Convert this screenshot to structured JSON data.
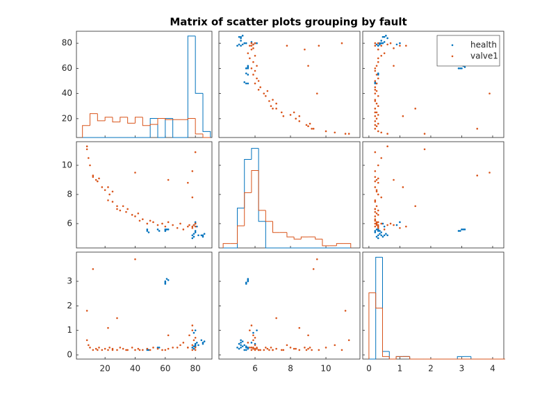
{
  "chart_data": {
    "type": "scatter_matrix",
    "title": "Matrix of scatter plots grouping by fault",
    "legend_position": "upper-right",
    "variables": [
      {
        "xlim": [
          1,
          91
        ],
        "xticks": [
          20,
          40,
          60,
          80
        ],
        "ylim": [
          5,
          89.5
        ],
        "yticks": [
          20,
          40,
          60,
          80
        ],
        "hist_ylim": [
          0,
          89
        ],
        "bins": [
          5,
          10,
          15,
          20,
          25,
          30,
          35,
          40,
          45,
          50,
          55,
          60,
          65,
          70,
          75,
          80,
          85,
          90
        ]
      },
      {
        "xlim": [
          3.96,
          11.92
        ],
        "xticks": [
          6,
          8,
          10
        ],
        "ylim": [
          4.33,
          11.62
        ],
        "yticks": [
          6,
          8,
          10
        ],
        "hist_ylim": [
          0,
          48
        ],
        "bins": [
          4.2,
          4.6,
          5.0,
          5.4,
          5.8,
          6.2,
          6.6,
          7.0,
          7.4,
          7.8,
          8.2,
          8.6,
          9.0,
          9.4,
          9.8,
          10.2,
          10.6,
          11.0,
          11.4
        ]
      },
      {
        "xlim": [
          -0.2,
          4.36
        ],
        "xticks": [
          0,
          1,
          2,
          3,
          4
        ],
        "ylim": [
          -0.17,
          4.19
        ],
        "yticks": [
          0,
          1,
          2,
          3
        ],
        "hist_ylim": [
          0,
          42
        ],
        "bins": [
          0,
          0.22,
          0.44,
          0.66,
          0.88,
          1.1,
          1.32,
          1.54,
          1.76,
          1.98,
          2.2,
          2.42,
          2.64,
          2.86,
          3.08,
          3.3,
          3.52,
          3.74,
          3.96,
          4.18,
          4.4
        ]
      }
    ],
    "series": [
      {
        "name": "health",
        "color": "#0072BD",
        "values": [
          [
            48,
            48,
            49,
            55,
            56,
            60,
            60,
            61,
            60,
            62,
            78,
            79,
            80,
            80,
            79,
            80,
            81,
            85,
            86,
            85,
            78,
            82,
            80,
            84,
            79
          ],
          [
            5.5,
            5.6,
            5.4,
            5.6,
            5.5,
            5.6,
            5.5,
            5.6,
            5.5,
            5.6,
            5.2,
            5.3,
            5.4,
            6.0,
            5.9,
            6.1,
            5.8,
            5.2,
            5.3,
            5.1,
            5.0,
            5.2,
            5.5,
            5.2,
            5.1
          ],
          [
            0.2,
            0.25,
            0.2,
            0.3,
            0.3,
            3.0,
            2.9,
            3.1,
            2.95,
            3.05,
            0.3,
            0.35,
            0.4,
            0.45,
            0.9,
            1.0,
            0.5,
            0.5,
            0.55,
            0.45,
            0.3,
            0.4,
            0.35,
            0.6,
            0.25
          ]
        ],
        "counts": [
          [
            0,
            0,
            0,
            0,
            0,
            0,
            0,
            0,
            0,
            16,
            0,
            16,
            0,
            0,
            85,
            37,
            5
          ],
          [
            0,
            0,
            18,
            40,
            45,
            12,
            0,
            0,
            0,
            0,
            0,
            0,
            0,
            0,
            0,
            0,
            0,
            0
          ],
          [
            0,
            40,
            3,
            0,
            1,
            1,
            0,
            0,
            0,
            0,
            0,
            0,
            0,
            1,
            1,
            0,
            0,
            0,
            0,
            0
          ]
        ]
      },
      {
        "name": "valve1",
        "color": "#D95319",
        "values": [
          [
            8,
            8,
            9,
            10,
            12,
            12,
            14,
            15,
            16,
            18,
            20,
            22,
            23,
            25,
            25,
            28,
            30,
            32,
            34,
            35,
            38,
            40,
            42,
            43,
            45,
            48,
            50,
            52,
            55,
            58,
            60,
            62,
            65,
            68,
            70,
            72,
            75,
            76,
            78,
            78,
            79,
            80,
            80,
            78,
            80,
            78,
            62,
            75,
            22,
            40,
            28
          ],
          [
            11.3,
            11.1,
            10.5,
            10.0,
            9.3,
            9.2,
            9.0,
            8.9,
            9.1,
            8.5,
            8.3,
            7.6,
            8.0,
            7.5,
            8.2,
            7.0,
            6.9,
            7.2,
            6.8,
            7.0,
            6.6,
            6.5,
            6.7,
            6.2,
            6.3,
            6.0,
            6.2,
            6.1,
            5.9,
            6.0,
            5.8,
            6.1,
            5.9,
            5.7,
            6.0,
            5.6,
            5.8,
            5.9,
            5.8,
            5.7,
            5.9,
            6.0,
            5.8,
            9.6,
            10.9,
            7.8,
            9.0,
            8.8,
            8.5,
            9.5,
            7.2
          ],
          [
            0.6,
            1.8,
            0.4,
            0.3,
            3.5,
            0.2,
            0.25,
            0.2,
            0.3,
            0.2,
            0.25,
            0.2,
            0.3,
            0.2,
            0.25,
            0.2,
            0.3,
            0.25,
            0.2,
            0.2,
            0.3,
            0.2,
            0.25,
            0.2,
            0.2,
            0.25,
            0.2,
            0.3,
            0.25,
            0.2,
            0.2,
            0.25,
            0.3,
            0.3,
            0.4,
            0.5,
            0.3,
            0.8,
            1.2,
            1.0,
            0.6,
            0.7,
            0.3,
            0.2,
            0.2,
            0.4,
            0.8,
            0.3,
            1.1,
            3.9,
            1.5
          ]
        ],
        "counts": [
          [
            10,
            20,
            14,
            17,
            13,
            17,
            12,
            17,
            10,
            11,
            16,
            15,
            15,
            15,
            16,
            3,
            0
          ],
          [
            2,
            2,
            10,
            25,
            35,
            17,
            12,
            7,
            7,
            5,
            4,
            5,
            5,
            4,
            1,
            1,
            2,
            2
          ],
          [
            26,
            20,
            1,
            0,
            1,
            1,
            0,
            0,
            0,
            0,
            0,
            0,
            0,
            0,
            0,
            0,
            0,
            0,
            0,
            0
          ]
        ]
      }
    ]
  }
}
